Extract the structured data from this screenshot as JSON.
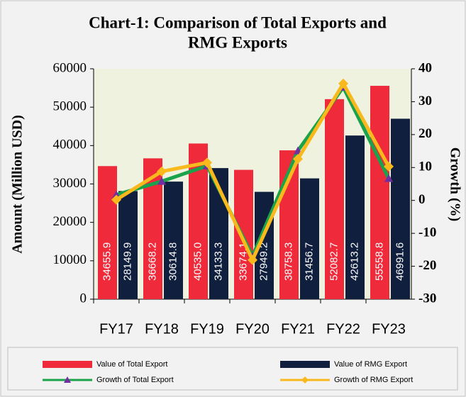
{
  "chart_data": {
    "type": "bar_line",
    "title": "Chart-1: Comparison of Total Exports and RMG Exports",
    "ylabel": "Amount (Million USD)",
    "y2label": "Growth (%)",
    "categories": [
      "FY17",
      "FY18",
      "FY19",
      "FY20",
      "FY21",
      "FY22",
      "FY23"
    ],
    "series": [
      {
        "name": "Value of Total Export",
        "kind": "bar",
        "color": "#ee2a3b",
        "values": [
          34655.9,
          36668.2,
          40535.0,
          33674.1,
          38758.3,
          52082.7,
          55558.8
        ],
        "value_labels": [
          "34655.9",
          "36668.2",
          "40535.0",
          "33674.1",
          "38758.3",
          "52082.7",
          "55558.8"
        ]
      },
      {
        "name": "Value of RMG Export",
        "kind": "bar",
        "color": "#0f1f3d",
        "values": [
          28149.9,
          30614.8,
          34133.3,
          27949.2,
          31456.7,
          42613.2,
          46991.6
        ]
      },
      {
        "name": "Growth of Total Export",
        "kind": "line",
        "axis": "y2",
        "color": "#1aa34a",
        "marker": "triangle",
        "marker_color": "#7030a0",
        "values": [
          1.7,
          5.8,
          10.5,
          -16.9,
          15.1,
          34.4,
          6.7
        ]
      },
      {
        "name": "Growth of RMG Export",
        "kind": "line",
        "axis": "y2",
        "color": "#f9b91c",
        "marker": "diamond",
        "marker_color": "#f9b91c",
        "values": [
          0.2,
          8.8,
          11.5,
          -18.1,
          12.6,
          35.5,
          10.3
        ]
      }
    ],
    "ylim": [
      0,
      60000
    ],
    "yticks": [
      0,
      10000,
      20000,
      30000,
      40000,
      50000,
      60000
    ],
    "y2lim": [
      -30,
      40
    ],
    "y2ticks": [
      -30,
      -20,
      -10,
      0,
      10,
      20,
      30,
      40
    ],
    "legend": "bottom"
  }
}
